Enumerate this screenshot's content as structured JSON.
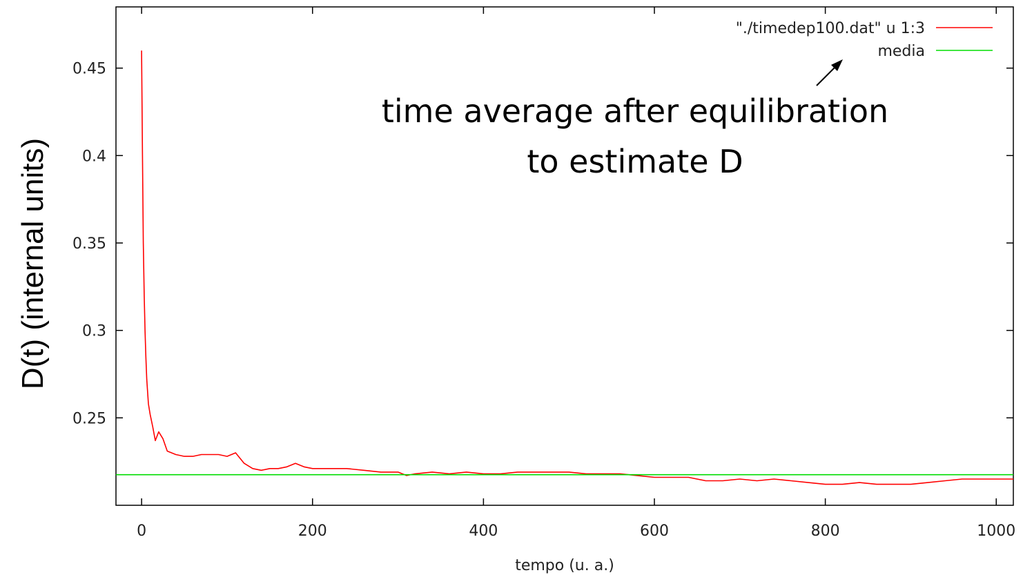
{
  "chart_data": {
    "type": "line",
    "xlabel": "tempo (u. a.)",
    "ylabel": "D(t)  (internal units)",
    "xlim": [
      -30,
      1020
    ],
    "ylim": [
      0.2,
      0.485
    ],
    "xticks": [
      0,
      200,
      400,
      600,
      800,
      1000
    ],
    "xtick_labels": [
      "0",
      "200",
      "400",
      "600",
      "800",
      "1000"
    ],
    "yticks": [
      0.25,
      0.3,
      0.35,
      0.4,
      0.45
    ],
    "ytick_labels": [
      "0.25",
      "0.3",
      "0.35",
      "0.4",
      "0.45"
    ],
    "grid": false,
    "legend_position": "top-right",
    "series": [
      {
        "name": "\"./timedep100.dat\" u 1:3",
        "color": "#ff0000",
        "x": [
          0,
          1,
          2,
          3,
          4,
          5,
          6,
          8,
          10,
          13,
          16,
          20,
          25,
          30,
          40,
          50,
          60,
          70,
          80,
          90,
          100,
          110,
          115,
          120,
          130,
          140,
          150,
          160,
          170,
          180,
          190,
          200,
          220,
          240,
          260,
          280,
          300,
          310,
          320,
          340,
          360,
          380,
          400,
          420,
          440,
          460,
          480,
          500,
          520,
          540,
          560,
          580,
          600,
          620,
          640,
          660,
          680,
          700,
          720,
          740,
          760,
          780,
          800,
          820,
          840,
          860,
          880,
          900,
          920,
          940,
          960,
          980,
          1000,
          1020
        ],
        "y": [
          0.46,
          0.4,
          0.35,
          0.32,
          0.3,
          0.285,
          0.272,
          0.258,
          0.252,
          0.245,
          0.237,
          0.242,
          0.238,
          0.231,
          0.229,
          0.228,
          0.228,
          0.229,
          0.229,
          0.229,
          0.228,
          0.23,
          0.227,
          0.224,
          0.221,
          0.22,
          0.221,
          0.221,
          0.222,
          0.224,
          0.222,
          0.221,
          0.221,
          0.221,
          0.22,
          0.219,
          0.219,
          0.217,
          0.218,
          0.219,
          0.218,
          0.219,
          0.218,
          0.218,
          0.219,
          0.219,
          0.219,
          0.219,
          0.218,
          0.218,
          0.218,
          0.217,
          0.216,
          0.216,
          0.216,
          0.214,
          0.214,
          0.215,
          0.214,
          0.215,
          0.214,
          0.213,
          0.212,
          0.212,
          0.213,
          0.212,
          0.212,
          0.212,
          0.213,
          0.214,
          0.215,
          0.215,
          0.215,
          0.215
        ]
      },
      {
        "name": "media",
        "color": "#00dd00",
        "x": [
          -30,
          1020
        ],
        "y": [
          0.2175,
          0.2175
        ]
      }
    ],
    "annotation": {
      "line1": "time average after equilibration",
      "line2": "to estimate D"
    }
  }
}
